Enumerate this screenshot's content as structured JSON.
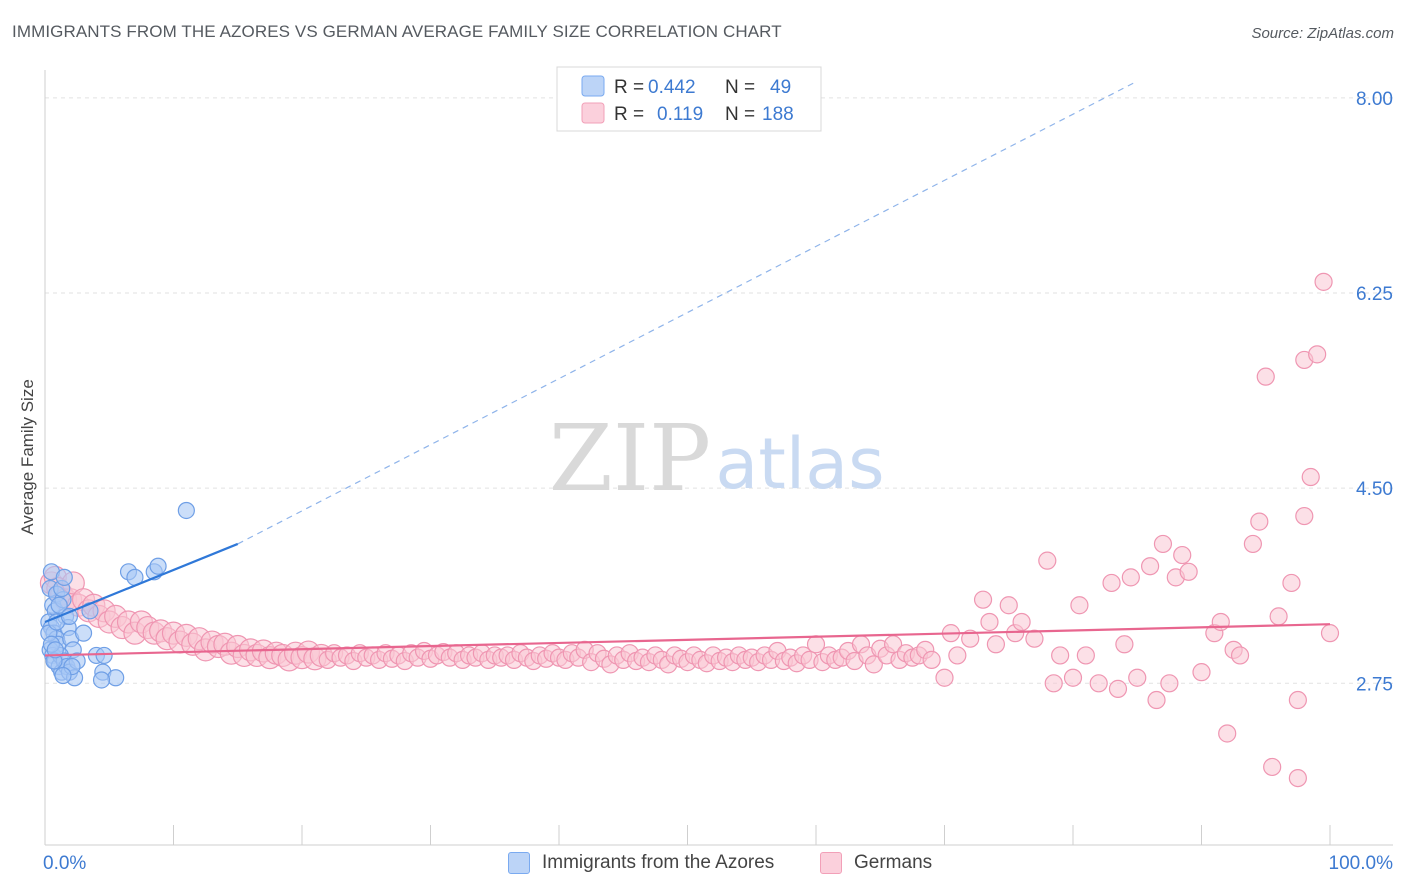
{
  "header": {
    "title": "IMMIGRANTS FROM THE AZORES VS GERMAN AVERAGE FAMILY SIZE CORRELATION CHART",
    "source": "Source: ZipAtlas.com"
  },
  "watermark": {
    "zip": "ZIP",
    "atlas": "atlas"
  },
  "legend_top": [
    {
      "r_label": "R = ",
      "r_value": "0.442",
      "n_label": "N = ",
      "n_value": "49",
      "color": "#7aaaf0"
    },
    {
      "r_label": "R = ",
      "r_value": "0.119",
      "n_label": "N = ",
      "n_value": "188",
      "color": "#f4a0b8"
    }
  ],
  "legend_bottom": [
    {
      "label": "Immigrants from the Azores",
      "color": "#a9c8f5",
      "border": "#7aaaf0"
    },
    {
      "label": "Germans",
      "color": "#f9c6d4",
      "border": "#f2a0b8"
    }
  ],
  "colors": {
    "blue_fill": "#a9c8f5",
    "blue_stroke": "#6f9fe6",
    "blue_line": "#2f78d8",
    "pink_fill": "#f9c6d4",
    "pink_stroke": "#ef96b2",
    "pink_line": "#e8668f",
    "axis_label": "#3d7ad1",
    "grid": "#e2e2e2"
  },
  "chart_data": {
    "type": "scatter",
    "title": "IMMIGRANTS FROM THE AZORES VS GERMAN AVERAGE FAMILY SIZE CORRELATION CHART",
    "xlabel": "",
    "ylabel": "Average Family Size",
    "xlim": [
      0,
      100
    ],
    "ylim": [
      1.3,
      8.25
    ],
    "x_tick_labels": [
      "0.0%",
      "100.0%"
    ],
    "y_ticks": [
      2.75,
      4.5,
      6.25,
      8.0
    ],
    "y_tick_labels": [
      "2.75",
      "4.50",
      "6.25",
      "8.00"
    ],
    "series": [
      {
        "name": "Immigrants from the Azores",
        "r": 0.442,
        "n": 49,
        "trend": {
          "x0": 0,
          "y0": 3.3,
          "x1": 15,
          "y1": 4.0,
          "dash_to": [
            85,
            8.15
          ]
        },
        "points": [
          [
            0.4,
            3.6
          ],
          [
            0.6,
            3.45
          ],
          [
            0.8,
            3.4
          ],
          [
            0.3,
            3.3
          ],
          [
            0.5,
            3.25
          ],
          [
            0.7,
            3.2
          ],
          [
            0.9,
            3.15
          ],
          [
            1.0,
            3.1
          ],
          [
            0.4,
            3.05
          ],
          [
            0.6,
            3.0
          ],
          [
            0.8,
            2.95
          ],
          [
            1.1,
            2.9
          ],
          [
            1.3,
            2.85
          ],
          [
            0.5,
            3.75
          ],
          [
            0.9,
            3.55
          ],
          [
            1.4,
            3.5
          ],
          [
            1.6,
            3.35
          ],
          [
            1.8,
            3.25
          ],
          [
            2.0,
            3.15
          ],
          [
            2.2,
            3.05
          ],
          [
            1.2,
            3.0
          ],
          [
            1.5,
            2.95
          ],
          [
            1.7,
            2.9
          ],
          [
            1.9,
            2.85
          ],
          [
            2.3,
            2.8
          ],
          [
            2.5,
            2.95
          ],
          [
            3.0,
            3.2
          ],
          [
            3.5,
            3.4
          ],
          [
            4.0,
            3.0
          ],
          [
            4.5,
            2.85
          ],
          [
            4.6,
            3.0
          ],
          [
            5.5,
            2.8
          ],
          [
            6.5,
            3.75
          ],
          [
            7.0,
            3.7
          ],
          [
            8.5,
            3.75
          ],
          [
            8.8,
            3.8
          ],
          [
            11,
            4.3
          ],
          [
            0.3,
            3.2
          ],
          [
            0.5,
            3.1
          ],
          [
            0.7,
            2.95
          ],
          [
            0.9,
            3.3
          ],
          [
            1.1,
            3.45
          ],
          [
            1.3,
            3.6
          ],
          [
            1.5,
            3.7
          ],
          [
            1.9,
            3.35
          ],
          [
            2.1,
            2.9
          ],
          [
            0.8,
            3.05
          ],
          [
            4.4,
            2.78
          ],
          [
            1.4,
            2.82
          ]
        ]
      },
      {
        "name": "Germans",
        "r": 0.119,
        "n": 188,
        "trend": {
          "x0": 0,
          "y0": 3.0,
          "x1": 100,
          "y1": 3.28
        },
        "points": [
          [
            0.5,
            3.65
          ],
          [
            0.8,
            3.7
          ],
          [
            1.0,
            3.6
          ],
          [
            1.3,
            3.55
          ],
          [
            1.6,
            3.5
          ],
          [
            2.0,
            3.5
          ],
          [
            2.2,
            3.65
          ],
          [
            2.6,
            3.45
          ],
          [
            3.0,
            3.5
          ],
          [
            3.4,
            3.4
          ],
          [
            3.8,
            3.45
          ],
          [
            4.2,
            3.35
          ],
          [
            4.6,
            3.4
          ],
          [
            5.0,
            3.3
          ],
          [
            5.5,
            3.35
          ],
          [
            6.0,
            3.25
          ],
          [
            6.5,
            3.3
          ],
          [
            7.0,
            3.2
          ],
          [
            7.5,
            3.3
          ],
          [
            8.0,
            3.25
          ],
          [
            8.5,
            3.2
          ],
          [
            9.0,
            3.22
          ],
          [
            9.5,
            3.15
          ],
          [
            10,
            3.2
          ],
          [
            10.5,
            3.12
          ],
          [
            11,
            3.18
          ],
          [
            11.5,
            3.1
          ],
          [
            12,
            3.15
          ],
          [
            12.5,
            3.05
          ],
          [
            13,
            3.12
          ],
          [
            13.5,
            3.08
          ],
          [
            14,
            3.1
          ],
          [
            14.5,
            3.02
          ],
          [
            15,
            3.08
          ],
          [
            15.5,
            3.0
          ],
          [
            16,
            3.05
          ],
          [
            16.5,
            3.0
          ],
          [
            17,
            3.04
          ],
          [
            17.5,
            2.98
          ],
          [
            18,
            3.02
          ],
          [
            18.5,
            3.0
          ],
          [
            19,
            2.96
          ],
          [
            19.5,
            3.02
          ],
          [
            20,
            2.98
          ],
          [
            20.5,
            3.03
          ],
          [
            21,
            2.97
          ],
          [
            21.5,
            3.0
          ],
          [
            22,
            2.96
          ],
          [
            22.5,
            3.02
          ],
          [
            23,
            2.98
          ],
          [
            23.5,
            3.0
          ],
          [
            24,
            2.95
          ],
          [
            24.5,
            3.02
          ],
          [
            25,
            2.98
          ],
          [
            25.5,
            3.0
          ],
          [
            26,
            2.96
          ],
          [
            26.5,
            3.02
          ],
          [
            27,
            2.97
          ],
          [
            27.5,
            3.0
          ],
          [
            28,
            2.95
          ],
          [
            28.5,
            3.02
          ],
          [
            29,
            2.98
          ],
          [
            29.5,
            3.04
          ],
          [
            30,
            2.97
          ],
          [
            30.5,
            3.0
          ],
          [
            31,
            3.03
          ],
          [
            31.5,
            2.98
          ],
          [
            32,
            3.02
          ],
          [
            32.5,
            2.96
          ],
          [
            33,
            3.0
          ],
          [
            33.5,
            2.98
          ],
          [
            34,
            3.02
          ],
          [
            34.5,
            2.96
          ],
          [
            35,
            3.0
          ],
          [
            35.5,
            2.98
          ],
          [
            36,
            3.0
          ],
          [
            36.5,
            2.96
          ],
          [
            37,
            3.02
          ],
          [
            37.5,
            2.98
          ],
          [
            38,
            2.95
          ],
          [
            38.5,
            3.0
          ],
          [
            39,
            2.97
          ],
          [
            39.5,
            3.02
          ],
          [
            40,
            2.98
          ],
          [
            40.5,
            2.96
          ],
          [
            41,
            3.02
          ],
          [
            41.5,
            2.98
          ],
          [
            42,
            3.05
          ],
          [
            42.5,
            2.94
          ],
          [
            43,
            3.02
          ],
          [
            43.5,
            2.97
          ],
          [
            44,
            2.92
          ],
          [
            44.5,
            3.0
          ],
          [
            45,
            2.96
          ],
          [
            45.5,
            3.02
          ],
          [
            46,
            2.95
          ],
          [
            46.5,
            2.98
          ],
          [
            47,
            2.94
          ],
          [
            47.5,
            3.0
          ],
          [
            48,
            2.96
          ],
          [
            48.5,
            2.92
          ],
          [
            49,
            3.0
          ],
          [
            49.5,
            2.97
          ],
          [
            50,
            2.94
          ],
          [
            50.5,
            3.0
          ],
          [
            51,
            2.96
          ],
          [
            51.5,
            2.93
          ],
          [
            52,
            3.0
          ],
          [
            52.5,
            2.95
          ],
          [
            53,
            2.98
          ],
          [
            53.5,
            2.94
          ],
          [
            54,
            3.0
          ],
          [
            54.5,
            2.96
          ],
          [
            55,
            2.98
          ],
          [
            55.5,
            2.94
          ],
          [
            56,
            3.0
          ],
          [
            56.5,
            2.96
          ],
          [
            57,
            3.04
          ],
          [
            57.5,
            2.95
          ],
          [
            58,
            2.98
          ],
          [
            58.5,
            2.93
          ],
          [
            59,
            3.0
          ],
          [
            59.5,
            2.96
          ],
          [
            60,
            3.1
          ],
          [
            60.5,
            2.94
          ],
          [
            61,
            3.0
          ],
          [
            61.5,
            2.96
          ],
          [
            62,
            2.98
          ],
          [
            62.5,
            3.04
          ],
          [
            63,
            2.95
          ],
          [
            63.5,
            3.1
          ],
          [
            64,
            3.0
          ],
          [
            64.5,
            2.92
          ],
          [
            65,
            3.06
          ],
          [
            65.5,
            3.0
          ],
          [
            66,
            3.1
          ],
          [
            66.5,
            2.96
          ],
          [
            67,
            3.02
          ],
          [
            67.5,
            2.98
          ],
          [
            68,
            3.0
          ],
          [
            68.5,
            3.05
          ],
          [
            69,
            2.96
          ],
          [
            70,
            2.8
          ],
          [
            70.5,
            3.2
          ],
          [
            71,
            3.0
          ],
          [
            72,
            3.15
          ],
          [
            73,
            3.5
          ],
          [
            73.5,
            3.3
          ],
          [
            74,
            3.1
          ],
          [
            75,
            3.45
          ],
          [
            75.5,
            3.2
          ],
          [
            76,
            3.3
          ],
          [
            77,
            3.15
          ],
          [
            78,
            3.85
          ],
          [
            78.5,
            2.75
          ],
          [
            79,
            3.0
          ],
          [
            80,
            2.8
          ],
          [
            80.5,
            3.45
          ],
          [
            81,
            3.0
          ],
          [
            82,
            2.75
          ],
          [
            83,
            3.65
          ],
          [
            83.5,
            2.7
          ],
          [
            84,
            3.1
          ],
          [
            84.5,
            3.7
          ],
          [
            85,
            2.8
          ],
          [
            86,
            3.8
          ],
          [
            86.5,
            2.6
          ],
          [
            87,
            4.0
          ],
          [
            87.5,
            2.75
          ],
          [
            88,
            3.7
          ],
          [
            88.5,
            3.9
          ],
          [
            89,
            3.75
          ],
          [
            90,
            2.85
          ],
          [
            91,
            3.2
          ],
          [
            91.5,
            3.3
          ],
          [
            92,
            2.3
          ],
          [
            92.5,
            3.05
          ],
          [
            93,
            3.0
          ],
          [
            94,
            4.0
          ],
          [
            94.5,
            4.2
          ],
          [
            95,
            5.5
          ],
          [
            95.5,
            2.0
          ],
          [
            96,
            3.35
          ],
          [
            97,
            3.65
          ],
          [
            97.5,
            1.9
          ],
          [
            97.5,
            2.6
          ],
          [
            98,
            4.25
          ],
          [
            98,
            5.65
          ],
          [
            98.5,
            4.6
          ],
          [
            99,
            5.7
          ],
          [
            99.5,
            6.35
          ],
          [
            100,
            3.2
          ]
        ]
      }
    ]
  }
}
